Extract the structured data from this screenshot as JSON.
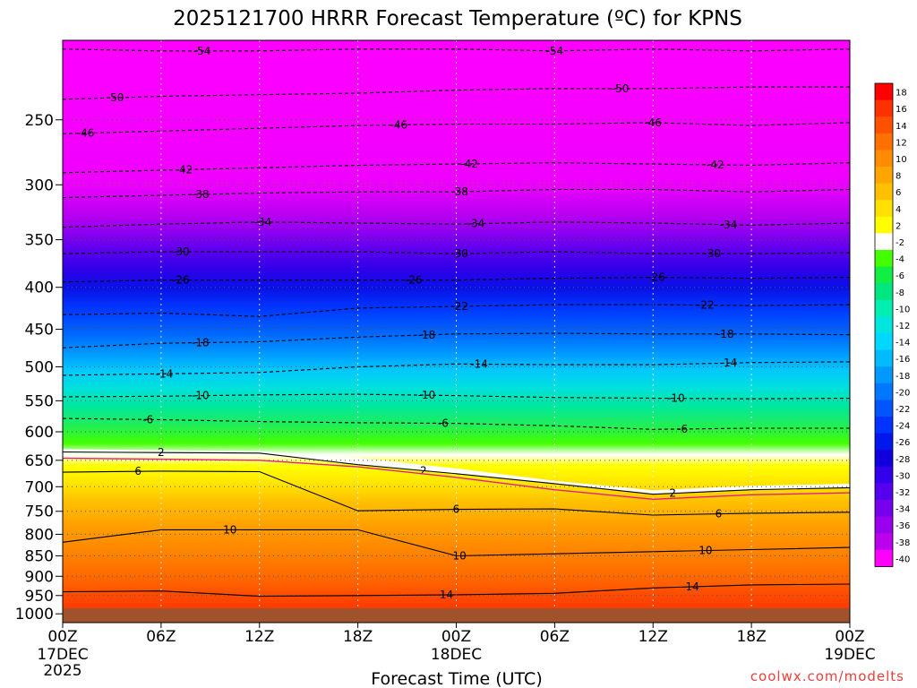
{
  "chart_data": {
    "type": "heatmap",
    "title": "2025121700 HRRR Forecast Temperature (ºC) for KPNS",
    "xlabel": "Forecast Time (UTC)",
    "ylabel": "",
    "credit": "coolwx.com/modelts",
    "x_ticks": [
      {
        "h": 0,
        "l1": "00Z",
        "l2": "17DEC",
        "l3": "2025"
      },
      {
        "h": 6,
        "l1": "06Z",
        "l2": "",
        "l3": ""
      },
      {
        "h": 12,
        "l1": "12Z",
        "l2": "",
        "l3": ""
      },
      {
        "h": 18,
        "l1": "18Z",
        "l2": "",
        "l3": ""
      },
      {
        "h": 24,
        "l1": "00Z",
        "l2": "18DEC",
        "l3": ""
      },
      {
        "h": 30,
        "l1": "06Z",
        "l2": "",
        "l3": ""
      },
      {
        "h": 36,
        "l1": "12Z",
        "l2": "",
        "l3": ""
      },
      {
        "h": 42,
        "l1": "18Z",
        "l2": "",
        "l3": ""
      },
      {
        "h": 48,
        "l1": "00Z",
        "l2": "19DEC",
        "l3": ""
      }
    ],
    "xlim": [
      0,
      48
    ],
    "y_ticks": [
      250,
      300,
      350,
      400,
      450,
      500,
      550,
      600,
      650,
      700,
      750,
      800,
      850,
      900,
      950,
      1000
    ],
    "ylim": [
      200,
      1025
    ],
    "y_scale": "log",
    "colorbar": {
      "labels": [
        "18",
        "16",
        "14",
        "12",
        "10",
        "8",
        "6",
        "4",
        "2",
        "-2",
        "-4",
        "-6",
        "-8",
        "-10",
        "-12",
        "-14",
        "-16",
        "-18",
        "-20",
        "-22",
        "-24",
        "-26",
        "-28",
        "-30",
        "-32",
        "-34",
        "-36",
        "-38",
        "-40"
      ],
      "colors": [
        "#ff0000",
        "#ff3000",
        "#ff5000",
        "#ff7000",
        "#ff8c00",
        "#ffa500",
        "#ffc000",
        "#ffe000",
        "#ffff00",
        "#ffffff",
        "#44ff00",
        "#11ee44",
        "#00e680",
        "#00eeb0",
        "#00e5dd",
        "#00d8ff",
        "#00bbff",
        "#0099ff",
        "#0077ff",
        "#0055ff",
        "#0033ff",
        "#0018ee",
        "#1100dd",
        "#3300ee",
        "#5500ee",
        "#7700ee",
        "#9900ee",
        "#bb00ee",
        "#ff00ff"
      ]
    },
    "contours": [
      {
        "value": -54,
        "label": "-54",
        "p": [
          [
            0,
            205
          ],
          [
            6,
            206
          ],
          [
            12,
            206
          ],
          [
            18,
            205
          ],
          [
            24,
            205
          ],
          [
            30,
            206
          ],
          [
            36,
            205
          ],
          [
            42,
            206
          ],
          [
            48,
            205
          ]
        ],
        "label_h": [
          8.5,
          30
        ]
      },
      {
        "value": -50,
        "label": "-50",
        "p": [
          [
            0,
            236
          ],
          [
            6,
            234
          ],
          [
            12,
            233
          ],
          [
            18,
            232
          ],
          [
            24,
            230
          ],
          [
            30,
            229
          ],
          [
            36,
            229
          ],
          [
            42,
            228
          ],
          [
            48,
            228
          ]
        ],
        "label_h": [
          3.2,
          34
        ]
      },
      {
        "value": -46,
        "label": "-46",
        "p": [
          [
            0,
            260
          ],
          [
            6,
            258
          ],
          [
            12,
            256
          ],
          [
            18,
            254
          ],
          [
            24,
            253
          ],
          [
            30,
            253
          ],
          [
            36,
            252
          ],
          [
            42,
            254
          ],
          [
            48,
            252
          ]
        ],
        "label_h": [
          1.4,
          20.5,
          36
        ]
      },
      {
        "value": -42,
        "label": "-42",
        "p": [
          [
            0,
            290
          ],
          [
            6,
            288
          ],
          [
            12,
            286
          ],
          [
            18,
            284
          ],
          [
            24,
            283
          ],
          [
            30,
            282
          ],
          [
            36,
            283
          ],
          [
            42,
            284
          ],
          [
            48,
            282
          ]
        ],
        "label_h": [
          7.4,
          24.8,
          39.8
        ]
      },
      {
        "value": -38,
        "label": "-38",
        "p": [
          [
            0,
            311
          ],
          [
            6,
            309
          ],
          [
            12,
            307
          ],
          [
            18,
            306
          ],
          [
            24,
            306
          ],
          [
            30,
            304
          ],
          [
            36,
            304
          ],
          [
            42,
            306
          ],
          [
            48,
            304
          ]
        ],
        "label_h": [
          8.4,
          24.2
        ]
      },
      {
        "value": -34,
        "label": "-34",
        "p": [
          [
            0,
            338
          ],
          [
            6,
            335
          ],
          [
            12,
            333
          ],
          [
            18,
            334
          ],
          [
            24,
            335
          ],
          [
            30,
            333
          ],
          [
            36,
            334
          ],
          [
            42,
            336
          ],
          [
            48,
            334
          ]
        ],
        "label_h": [
          12.2,
          25.2,
          40.6
        ]
      },
      {
        "value": -30,
        "label": "-30",
        "p": [
          [
            0,
            364
          ],
          [
            6,
            362
          ],
          [
            12,
            362
          ],
          [
            18,
            362
          ],
          [
            24,
            364
          ],
          [
            30,
            362
          ],
          [
            36,
            364
          ],
          [
            42,
            364
          ],
          [
            48,
            363
          ]
        ],
        "label_h": [
          7.2,
          24.2,
          39.6
        ]
      },
      {
        "value": -26,
        "label": "-26",
        "p": [
          [
            0,
            394
          ],
          [
            6,
            392
          ],
          [
            12,
            392
          ],
          [
            18,
            392
          ],
          [
            24,
            392
          ],
          [
            30,
            390
          ],
          [
            36,
            389
          ],
          [
            42,
            390
          ],
          [
            48,
            389
          ]
        ],
        "label_h": [
          7.2,
          21.4,
          36.2
        ]
      },
      {
        "value": -22,
        "label": "-22",
        "p": [
          [
            0,
            432
          ],
          [
            6,
            430
          ],
          [
            12,
            434
          ],
          [
            18,
            424
          ],
          [
            24,
            422
          ],
          [
            30,
            420
          ],
          [
            36,
            420
          ],
          [
            42,
            421
          ],
          [
            48,
            420
          ]
        ],
        "label_h": [
          24.2,
          39.2
        ]
      },
      {
        "value": -18,
        "label": "-18",
        "p": [
          [
            0,
            474
          ],
          [
            6,
            468
          ],
          [
            12,
            466
          ],
          [
            18,
            460
          ],
          [
            24,
            456
          ],
          [
            30,
            455
          ],
          [
            36,
            456
          ],
          [
            42,
            456
          ],
          [
            48,
            457
          ]
        ],
        "label_h": [
          8.4,
          22.2,
          40.4
        ]
      },
      {
        "value": -14,
        "label": "-14",
        "p": [
          [
            0,
            512
          ],
          [
            6,
            510
          ],
          [
            12,
            508
          ],
          [
            18,
            500
          ],
          [
            24,
            496
          ],
          [
            30,
            497
          ],
          [
            36,
            497
          ],
          [
            42,
            494
          ],
          [
            48,
            493
          ]
        ],
        "label_h": [
          6.2,
          25.4,
          40.6
        ]
      },
      {
        "value": -10,
        "label": "-10",
        "p": [
          [
            0,
            544
          ],
          [
            6,
            543
          ],
          [
            12,
            541
          ],
          [
            18,
            540
          ],
          [
            24,
            542
          ],
          [
            30,
            545
          ],
          [
            36,
            546
          ],
          [
            42,
            547
          ],
          [
            48,
            546
          ]
        ],
        "label_h": [
          8.4,
          22.2,
          37.4
        ]
      },
      {
        "value": -6,
        "label": "-6",
        "p": [
          [
            0,
            578
          ],
          [
            6,
            580
          ],
          [
            12,
            583
          ],
          [
            18,
            585
          ],
          [
            24,
            586
          ],
          [
            30,
            590
          ],
          [
            36,
            596
          ],
          [
            42,
            594
          ],
          [
            48,
            594
          ]
        ],
        "label_h": [
          5.2,
          23.2,
          37.8
        ]
      },
      {
        "value": 2,
        "label": "2",
        "p": [
          [
            0,
            635
          ],
          [
            6,
            636
          ],
          [
            12,
            637
          ],
          [
            18,
            658
          ],
          [
            24,
            675
          ],
          [
            30,
            694
          ],
          [
            36,
            715
          ],
          [
            42,
            706
          ],
          [
            48,
            702
          ]
        ],
        "label_h": [
          6,
          22,
          37.2
        ]
      },
      {
        "value": 6,
        "label": "6",
        "p": [
          [
            0,
            672
          ],
          [
            6,
            670
          ],
          [
            12,
            671
          ],
          [
            18,
            749
          ],
          [
            24,
            746
          ],
          [
            30,
            745
          ],
          [
            36,
            758
          ],
          [
            42,
            754
          ],
          [
            48,
            752
          ]
        ],
        "label_h": [
          4.6,
          24,
          40
        ]
      },
      {
        "value": 10,
        "label": "10",
        "p": [
          [
            0,
            818
          ],
          [
            6,
            790
          ],
          [
            12,
            790
          ],
          [
            18,
            790
          ],
          [
            24,
            850
          ],
          [
            30,
            845
          ],
          [
            36,
            840
          ],
          [
            42,
            835
          ],
          [
            48,
            830
          ]
        ],
        "label_h": [
          10.2,
          24.2,
          39.2
        ]
      },
      {
        "value": 14,
        "label": "14",
        "p": [
          [
            0,
            940
          ],
          [
            6,
            938
          ],
          [
            12,
            952
          ],
          [
            18,
            950
          ],
          [
            24,
            948
          ],
          [
            30,
            944
          ],
          [
            36,
            930
          ],
          [
            42,
            922
          ],
          [
            48,
            920
          ]
        ],
        "label_h": [
          23.4,
          38.4
        ]
      }
    ],
    "freezing_line": {
      "value": 0,
      "p": [
        [
          0,
          646
        ],
        [
          6,
          648
        ],
        [
          12,
          650
        ],
        [
          18,
          662
        ],
        [
          24,
          682
        ],
        [
          30,
          706
        ],
        [
          36,
          725
        ],
        [
          42,
          716
        ],
        [
          48,
          712
        ]
      ]
    }
  }
}
